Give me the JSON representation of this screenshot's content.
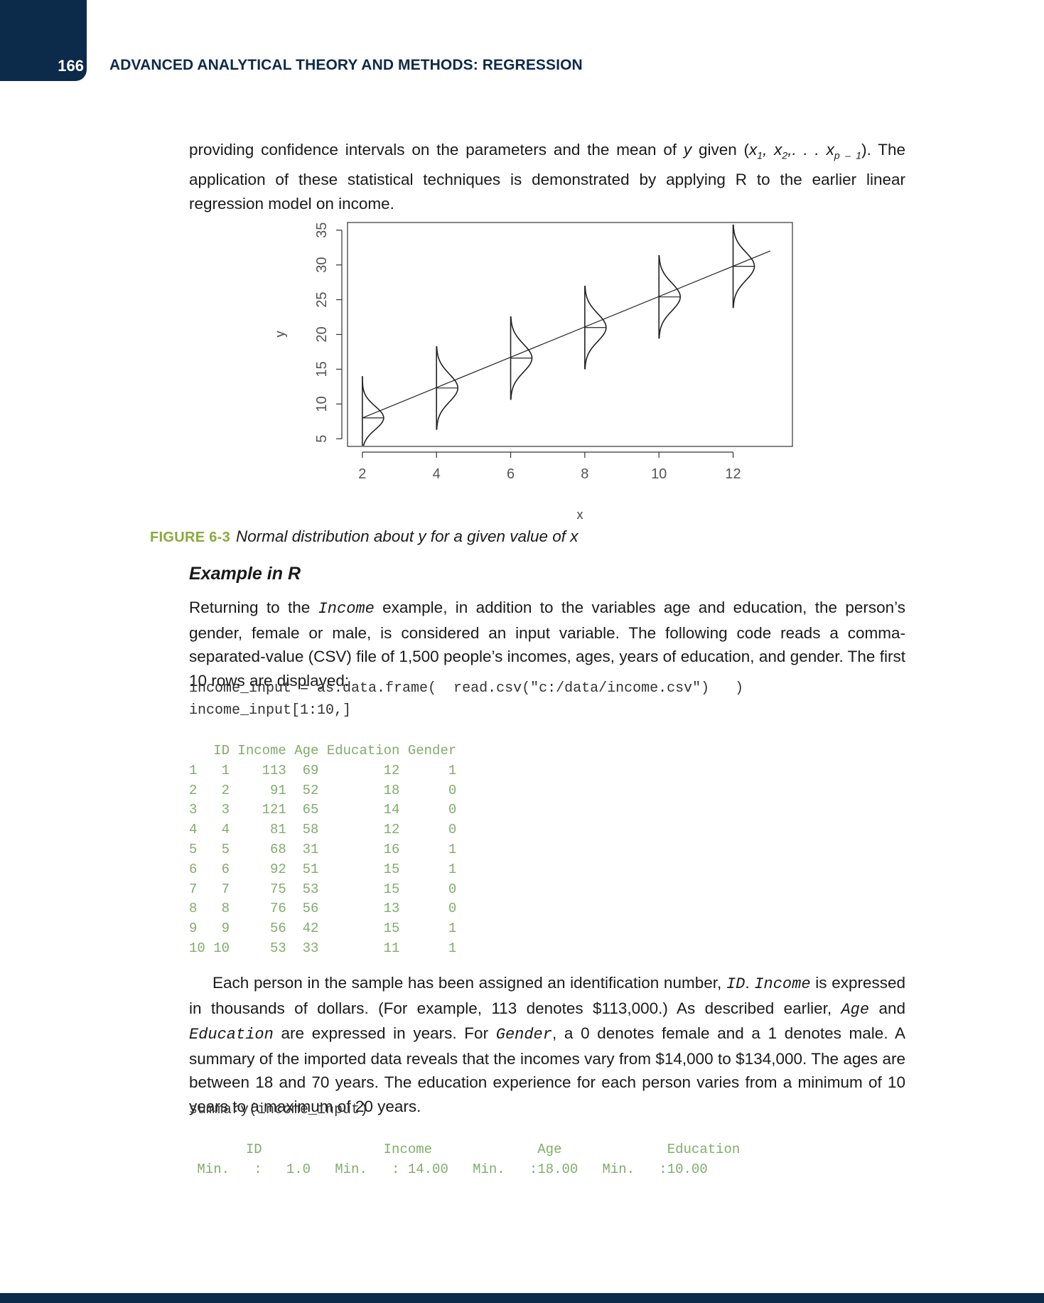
{
  "header": {
    "page_number": "166",
    "running_head": "ADVANCED ANALYTICAL THEORY AND METHODS: REGRESSION"
  },
  "intro": {
    "line1_a": "providing confidence intervals on the parameters and the mean of ",
    "line1_y": "y",
    "line1_b": " given (",
    "line1_c": "). The application of",
    "line2": "these statistical techniques is demonstrated by applying R to the earlier linear regression model on income."
  },
  "chart_data": {
    "type": "line",
    "title": "",
    "xlabel": "x",
    "ylabel": "y",
    "xlim": [
      1.6,
      13.6
    ],
    "ylim": [
      3.9,
      36.1
    ],
    "x_ticks": [
      2,
      4,
      6,
      8,
      10,
      12
    ],
    "y_ticks": [
      5,
      10,
      15,
      20,
      25,
      30,
      35
    ],
    "grid": false,
    "series": [
      {
        "x": [
          2,
          13
        ],
        "y": [
          8,
          32
        ]
      }
    ],
    "distributions": [
      {
        "x": 2,
        "mean": 8,
        "low": 4,
        "high": 14
      },
      {
        "x": 4,
        "mean": 12.3,
        "low": 6.3,
        "high": 18.3
      },
      {
        "x": 6,
        "mean": 16.6,
        "low": 10.6,
        "high": 22.6
      },
      {
        "x": 8,
        "mean": 21,
        "low": 15,
        "high": 27
      },
      {
        "x": 10,
        "mean": 25.4,
        "low": 19.4,
        "high": 31.4
      },
      {
        "x": 12,
        "mean": 29.8,
        "low": 23.8,
        "high": 35.8
      }
    ]
  },
  "figure": {
    "label": "FIGURE 6-3",
    "caption": "Normal distribution about y for a given value of x"
  },
  "example": {
    "heading": "Example in R",
    "p1_a": "Returning to the ",
    "p1_code": "Income",
    "p1_b": " example, in addition to the variables age and education, the person’s gender, female or male, is considered an input variable. The following code reads a comma-separated-value (CSV) file of 1,500 people’s incomes, ages, years of education, and gender. The first 10 rows are displayed:"
  },
  "code1": {
    "line1": "income_input = as.data.frame(  read.csv(\"c:/data/income.csv\")   )",
    "line2": "income_input[1:10,]"
  },
  "table": {
    "header": "   ID Income Age Education Gender",
    "rows": [
      "1   1    113  69        12      1",
      "2   2     91  52        18      0",
      "3   3    121  65        14      0",
      "4   4     81  58        12      0",
      "5   5     68  31        16      1",
      "6   6     92  51        15      1",
      "7   7     75  53        15      0",
      "8   8     76  56        13      0",
      "9   9     56  42        15      1",
      "10 10     53  33        11      1"
    ]
  },
  "paragraph2": {
    "a": "Each person in the sample has been assigned an identification number, ",
    "code_id": "ID",
    "b": ". ",
    "code_income": "Income",
    "c": " is expressed in thousands of dollars. (For example, 113 denotes $113,000.) As described earlier, ",
    "code_age": "Age",
    "d": " and ",
    "code_education": "Education",
    "e": " are expressed in years. For ",
    "code_gender": "Gender",
    "f": ", a 0 denotes female and a 1 denotes male. A summary of the imported data reveals that the incomes vary from $14,000 to $134,000. The ages are between 18 and 70 years. The education experience for each person varies from a minimum of 10 years to a maximum of 20 years."
  },
  "code2": {
    "line1": "summary(income_input)"
  },
  "summary_output": {
    "header": "       ID               Income             Age             Education",
    "row1": " Min.   :   1.0   Min.   : 14.00   Min.   :18.00   Min.   :10.00"
  }
}
